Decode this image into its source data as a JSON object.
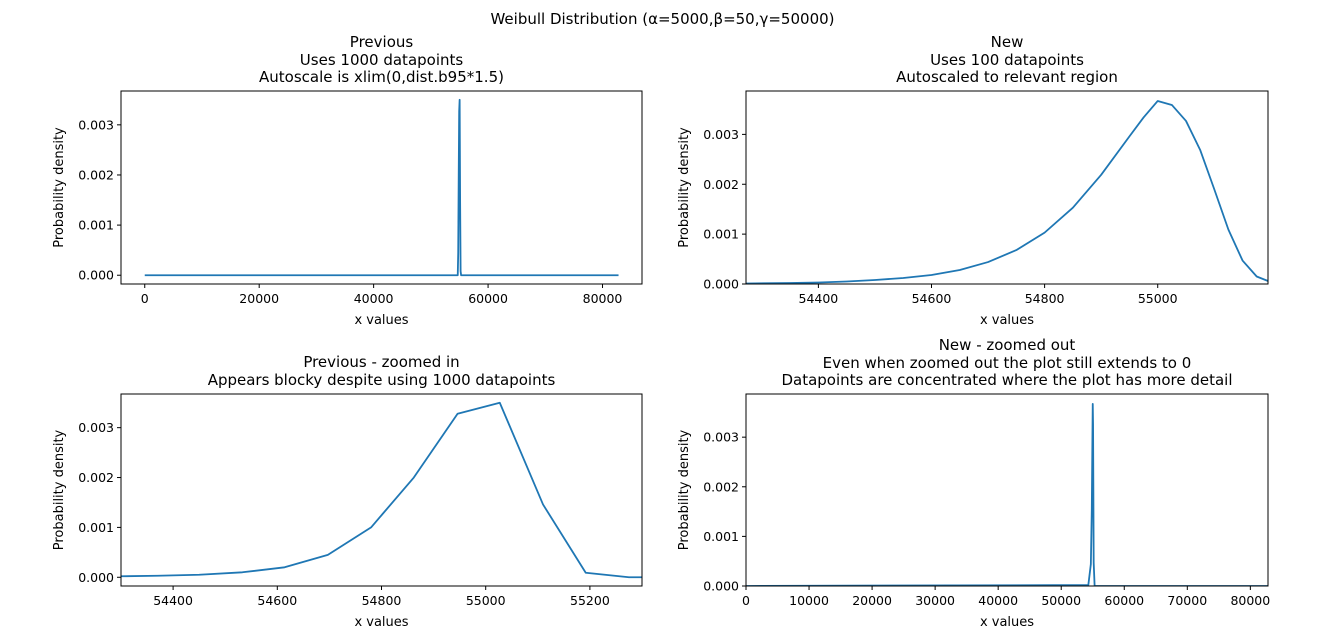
{
  "figure": {
    "suptitle": "Weibull Distribution (α=5000,β=50,γ=50000)",
    "line_color": "#1f77b4"
  },
  "chart_data": [
    {
      "type": "line",
      "title_lines": [
        "Previous",
        "Uses 1000 datapoints",
        "Autoscale is xlim(0,dist.b95*1.5)"
      ],
      "xlabel": "x values",
      "ylabel": "Probability density",
      "xlim": [
        -4150,
        86900
      ],
      "ylim": [
        -0.000175,
        0.003675
      ],
      "xticks": [
        0,
        20000,
        40000,
        60000,
        80000
      ],
      "xtick_labels": [
        "0",
        "20000",
        "40000",
        "60000",
        "80000"
      ],
      "yticks": [
        0,
        0.001,
        0.002,
        0.003
      ],
      "ytick_labels": [
        "0.000",
        "0.001",
        "0.002",
        "0.003"
      ],
      "series": [
        {
          "x": [
            0,
            54700,
            54780,
            54870,
            54950,
            55030,
            55115,
            55200,
            55290,
            82800
          ],
          "y": [
            0,
            0,
            0.00045,
            0.002,
            0.00327,
            0.0035,
            0.00146,
            8e-05,
            0,
            0
          ]
        }
      ]
    },
    {
      "type": "line",
      "title_lines": [
        "New",
        "Uses 100 datapoints",
        "Autoscaled to relevant region"
      ],
      "xlabel": "x values",
      "ylabel": "Probability density",
      "xlim": [
        54272,
        55195
      ],
      "ylim": [
        0,
        0.00387
      ],
      "xticks": [
        54400,
        54600,
        54800,
        55000
      ],
      "xtick_labels": [
        "54400",
        "54600",
        "54800",
        "55000"
      ],
      "yticks": [
        0,
        0.001,
        0.002,
        0.003
      ],
      "ytick_labels": [
        "0.000",
        "0.001",
        "0.002",
        "0.003"
      ],
      "series": [
        {
          "x": [
            54272,
            54350,
            54400,
            54450,
            54500,
            54550,
            54600,
            54650,
            54700,
            54750,
            54800,
            54850,
            54900,
            54950,
            54975,
            55000,
            55025,
            55050,
            55075,
            55100,
            55125,
            55150,
            55175,
            55195
          ],
          "y": [
            1e-05,
            2e-05,
            3e-05,
            5e-05,
            8e-05,
            0.00012,
            0.00018,
            0.00028,
            0.00044,
            0.00068,
            0.00103,
            0.00153,
            0.00219,
            0.00296,
            0.00334,
            0.00367,
            0.00359,
            0.00327,
            0.00269,
            0.0019,
            0.00109,
            0.00047,
            0.00015,
            6e-05
          ]
        }
      ]
    },
    {
      "type": "line",
      "title_lines": [
        "Previous - zoomed in",
        "Appears blocky despite using 1000 datapoints"
      ],
      "xlabel": "x values",
      "ylabel": "Probability density",
      "xlim": [
        54300,
        55300
      ],
      "ylim": [
        -0.000175,
        0.003675
      ],
      "xticks": [
        54400,
        54600,
        54800,
        55000,
        55200
      ],
      "xtick_labels": [
        "54400",
        "54600",
        "54800",
        "55000",
        "55200"
      ],
      "yticks": [
        0,
        0.001,
        0.002,
        0.003
      ],
      "ytick_labels": [
        "0.000",
        "0.001",
        "0.002",
        "0.003"
      ],
      "series": [
        {
          "x": [
            54300,
            54370,
            54450,
            54533,
            54614,
            54697,
            54780,
            54862,
            54946,
            55027,
            55110,
            55192,
            55275,
            55300
          ],
          "y": [
            2e-05,
            3e-05,
            5e-05,
            0.0001,
            0.0002,
            0.00045,
            0.001,
            0.002,
            0.00328,
            0.0035,
            0.00146,
            9e-05,
            0,
            0
          ]
        }
      ]
    },
    {
      "type": "line",
      "title_lines": [
        "New - zoomed out",
        "Even when zoomed out the plot still extends to 0",
        "Datapoints are concentrated where the plot has more detail"
      ],
      "xlabel": "x values",
      "ylabel": "Probability density",
      "xlim": [
        0,
        82800
      ],
      "ylim": [
        0,
        0.00387
      ],
      "xticks": [
        0,
        10000,
        20000,
        30000,
        40000,
        50000,
        60000,
        70000,
        80000
      ],
      "xtick_labels": [
        "0",
        "10000",
        "20000",
        "30000",
        "40000",
        "50000",
        "60000",
        "70000",
        "80000"
      ],
      "yticks": [
        0,
        0.001,
        0.002,
        0.003
      ],
      "ytick_labels": [
        "0.000",
        "0.001",
        "0.002",
        "0.003"
      ],
      "series": [
        {
          "x": [
            0,
            54300,
            54700,
            54850,
            54950,
            55000,
            55050,
            55100,
            55150,
            55300,
            82800
          ],
          "y": [
            0,
            2e-05,
            0.00044,
            0.00153,
            0.00296,
            0.00367,
            0.00327,
            0.0019,
            0.00047,
            0,
            0
          ]
        }
      ]
    }
  ]
}
